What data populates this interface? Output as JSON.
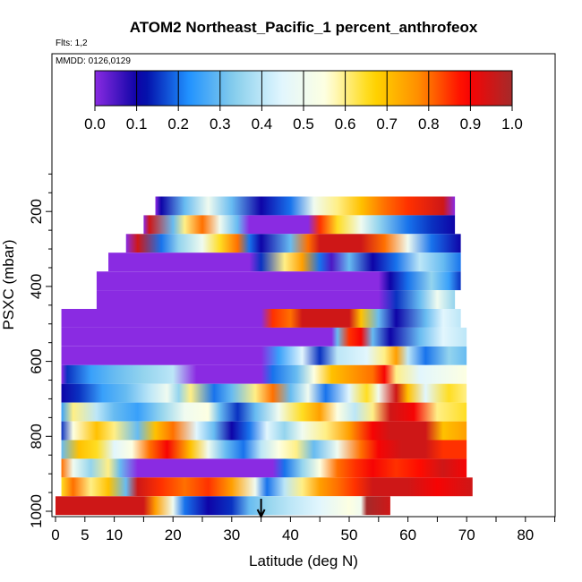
{
  "chart_data": {
    "type": "heatmap",
    "title": "ATOM2 Northeast_Pacific_1 percent_anthrofeox",
    "subtitle_flights": "Flts: 1,2",
    "subtitle_dates": "MMDD: 0126,0129",
    "xlabel": "Latitude (deg N)",
    "ylabel": "PSXC (mbar)",
    "xlim": [
      0,
      85
    ],
    "ylim": [
      1000,
      100
    ],
    "x_ticks": [
      0,
      5,
      10,
      20,
      30,
      40,
      50,
      60,
      70,
      80
    ],
    "y_ticks": [
      200,
      400,
      600,
      800,
      1000
    ],
    "colorbar": {
      "range": [
        0,
        1
      ],
      "ticks": [
        "0.0",
        "0.1",
        "0.2",
        "0.3",
        "0.4",
        "0.5",
        "0.6",
        "0.7",
        "0.8",
        "0.9",
        "1.0"
      ],
      "colors": [
        "#8a2be2",
        "#0000a0",
        "#1e90ff",
        "#87ceeb",
        "#e0f6ff",
        "#ffffe0",
        "#ffd700",
        "#ff8c00",
        "#ff0000",
        "#a52a2a"
      ]
    },
    "rows": [
      {
        "p": 185,
        "x0": 17,
        "x1": 68,
        "stops": [
          [
            17,
            0.0
          ],
          [
            18,
            0.1
          ],
          [
            22,
            0.3
          ],
          [
            26,
            0.5
          ],
          [
            30,
            0.3
          ],
          [
            35,
            0.1
          ],
          [
            40,
            0.2
          ],
          [
            44,
            0.5
          ],
          [
            48,
            0.6
          ],
          [
            52,
            0.7
          ],
          [
            56,
            0.8
          ],
          [
            60,
            0.85
          ],
          [
            66,
            0.95
          ],
          [
            68,
            0.0
          ]
        ]
      },
      {
        "p": 235,
        "x0": 15,
        "x1": 68,
        "stops": [
          [
            15,
            0.0
          ],
          [
            16,
            0.95
          ],
          [
            20,
            0.3
          ],
          [
            22,
            0.6
          ],
          [
            25,
            0.8
          ],
          [
            28,
            0.5
          ],
          [
            31,
            0.3
          ],
          [
            33,
            0.0
          ],
          [
            43,
            0.0
          ],
          [
            45,
            0.85
          ],
          [
            48,
            0.65
          ],
          [
            52,
            0.5
          ],
          [
            55,
            0.35
          ],
          [
            60,
            0.2
          ],
          [
            64,
            0.15
          ],
          [
            68,
            0.1
          ]
        ]
      },
      {
        "p": 285,
        "x0": 12,
        "x1": 69,
        "stops": [
          [
            12,
            0.0
          ],
          [
            14,
            0.95
          ],
          [
            18,
            0.2
          ],
          [
            21,
            0.35
          ],
          [
            25,
            0.5
          ],
          [
            28,
            0.65
          ],
          [
            31,
            0.8
          ],
          [
            33,
            0.2
          ],
          [
            35,
            0.1
          ],
          [
            40,
            0.3
          ],
          [
            43,
            0.8
          ],
          [
            45,
            0.95
          ],
          [
            48,
            0.95
          ],
          [
            52,
            0.95
          ],
          [
            56,
            0.8
          ],
          [
            60,
            0.5
          ],
          [
            64,
            0.2
          ],
          [
            69,
            0.1
          ]
        ]
      },
      {
        "p": 335,
        "x0": 9,
        "x1": 69,
        "stops": [
          [
            9,
            0.0
          ],
          [
            33,
            0.0
          ],
          [
            35,
            0.15
          ],
          [
            39,
            0.6
          ],
          [
            42,
            0.75
          ],
          [
            45,
            0.2
          ],
          [
            47,
            0.05
          ],
          [
            50,
            0.3
          ],
          [
            54,
            0.1
          ],
          [
            58,
            0.2
          ],
          [
            62,
            0.4
          ],
          [
            66,
            0.3
          ],
          [
            69,
            0.2
          ]
        ]
      },
      {
        "p": 385,
        "x0": 7,
        "x1": 69,
        "stops": [
          [
            7,
            0.0
          ],
          [
            55,
            0.0
          ],
          [
            57,
            0.1
          ],
          [
            60,
            0.2
          ],
          [
            64,
            0.35
          ],
          [
            67,
            0.25
          ],
          [
            69,
            0.15
          ]
        ]
      },
      {
        "p": 435,
        "x0": 7,
        "x1": 68,
        "stops": [
          [
            7,
            0.0
          ],
          [
            55,
            0.0
          ],
          [
            58,
            0.15
          ],
          [
            62,
            0.3
          ],
          [
            65,
            0.5
          ],
          [
            68,
            0.35
          ]
        ]
      },
      {
        "p": 485,
        "x0": 1,
        "x1": 69,
        "stops": [
          [
            1,
            0.0
          ],
          [
            35,
            0.0
          ],
          [
            37,
            0.85
          ],
          [
            40,
            0.8
          ],
          [
            42,
            0.95
          ],
          [
            50,
            0.95
          ],
          [
            52,
            0.7
          ],
          [
            55,
            0.3
          ],
          [
            58,
            0.1
          ],
          [
            63,
            0.3
          ],
          [
            66,
            0.45
          ],
          [
            69,
            0.4
          ]
        ]
      },
      {
        "p": 535,
        "x0": 1,
        "x1": 70,
        "stops": [
          [
            1,
            0.0
          ],
          [
            47,
            0.0
          ],
          [
            48,
            0.3
          ],
          [
            50,
            0.85
          ],
          [
            52,
            0.9
          ],
          [
            54,
            0.3
          ],
          [
            57,
            0.1
          ],
          [
            62,
            0.3
          ],
          [
            66,
            0.45
          ],
          [
            70,
            0.4
          ]
        ]
      },
      {
        "p": 585,
        "x0": 1,
        "x1": 70,
        "stops": [
          [
            1,
            0.0
          ],
          [
            35,
            0.0
          ],
          [
            38,
            0.25
          ],
          [
            42,
            0.45
          ],
          [
            45,
            0.15
          ],
          [
            48,
            0.4
          ],
          [
            53,
            0.45
          ],
          [
            56,
            0.6
          ],
          [
            58,
            0.75
          ],
          [
            60,
            0.4
          ],
          [
            63,
            0.2
          ],
          [
            67,
            0.35
          ],
          [
            70,
            0.3
          ]
        ]
      },
      {
        "p": 635,
        "x0": 1,
        "x1": 70,
        "stops": [
          [
            1,
            0.0
          ],
          [
            2,
            0.15
          ],
          [
            6,
            0.25
          ],
          [
            10,
            0.3
          ],
          [
            15,
            0.35
          ],
          [
            20,
            0.4
          ],
          [
            24,
            0.0
          ],
          [
            35,
            0.0
          ],
          [
            37,
            0.2
          ],
          [
            41,
            0.3
          ],
          [
            44,
            0.55
          ],
          [
            47,
            0.7
          ],
          [
            50,
            0.75
          ],
          [
            54,
            0.8
          ],
          [
            56,
            0.9
          ],
          [
            58,
            0.6
          ],
          [
            62,
            0.45
          ],
          [
            66,
            0.5
          ],
          [
            70,
            0.55
          ]
        ]
      },
      {
        "p": 685,
        "x0": 1,
        "x1": 70,
        "stops": [
          [
            1,
            0.1
          ],
          [
            4,
            0.15
          ],
          [
            8,
            0.25
          ],
          [
            12,
            0.3
          ],
          [
            16,
            0.4
          ],
          [
            19,
            0.5
          ],
          [
            21,
            0.35
          ],
          [
            23,
            0.6
          ],
          [
            27,
            0.2
          ],
          [
            30,
            0.3
          ],
          [
            34,
            0.6
          ],
          [
            37,
            0.8
          ],
          [
            40,
            0.3
          ],
          [
            43,
            0.5
          ],
          [
            46,
            0.2
          ],
          [
            50,
            0.45
          ],
          [
            53,
            0.65
          ],
          [
            55,
            0.5
          ],
          [
            58,
            0.95
          ],
          [
            60,
            0.7
          ],
          [
            63,
            0.45
          ],
          [
            67,
            0.65
          ],
          [
            70,
            0.6
          ]
        ]
      },
      {
        "p": 735,
        "x0": 1,
        "x1": 70,
        "stops": [
          [
            1,
            0.25
          ],
          [
            3,
            0.6
          ],
          [
            7,
            0.4
          ],
          [
            10,
            0.3
          ],
          [
            14,
            0.25
          ],
          [
            18,
            0.35
          ],
          [
            22,
            0.5
          ],
          [
            26,
            0.55
          ],
          [
            28,
            0.3
          ],
          [
            31,
            0.15
          ],
          [
            34,
            0.3
          ],
          [
            38,
            0.5
          ],
          [
            42,
            0.65
          ],
          [
            45,
            0.75
          ],
          [
            48,
            0.55
          ],
          [
            51,
            0.4
          ],
          [
            54,
            0.6
          ],
          [
            57,
            0.95
          ],
          [
            61,
            0.9
          ],
          [
            65,
            0.6
          ],
          [
            70,
            0.65
          ]
        ]
      },
      {
        "p": 785,
        "x0": 1,
        "x1": 70,
        "stops": [
          [
            1,
            0.15
          ],
          [
            3,
            0.55
          ],
          [
            7,
            0.7
          ],
          [
            10,
            0.6
          ],
          [
            14,
            0.3
          ],
          [
            17,
            0.7
          ],
          [
            20,
            0.8
          ],
          [
            24,
            0.45
          ],
          [
            27,
            0.3
          ],
          [
            30,
            0.1
          ],
          [
            33,
            0.2
          ],
          [
            36,
            0.45
          ],
          [
            39,
            0.35
          ],
          [
            42,
            0.5
          ],
          [
            46,
            0.6
          ],
          [
            50,
            0.75
          ],
          [
            54,
            0.9
          ],
          [
            57,
            0.95
          ],
          [
            63,
            0.95
          ],
          [
            66,
            0.7
          ],
          [
            70,
            0.75
          ]
        ]
      },
      {
        "p": 835,
        "x0": 1,
        "x1": 70,
        "stops": [
          [
            1,
            0.3
          ],
          [
            4,
            0.7
          ],
          [
            7,
            0.65
          ],
          [
            10,
            0.45
          ],
          [
            13,
            0.55
          ],
          [
            16,
            0.8
          ],
          [
            19,
            0.9
          ],
          [
            23,
            0.7
          ],
          [
            26,
            0.5
          ],
          [
            29,
            0.3
          ],
          [
            32,
            0.2
          ],
          [
            35,
            0.4
          ],
          [
            38,
            0.55
          ],
          [
            41,
            0.6
          ],
          [
            44,
            0.3
          ],
          [
            48,
            0.5
          ],
          [
            52,
            0.8
          ],
          [
            55,
            0.9
          ],
          [
            59,
            0.95
          ],
          [
            63,
            0.95
          ],
          [
            66,
            0.85
          ],
          [
            70,
            0.85
          ]
        ]
      },
      {
        "p": 885,
        "x0": 1,
        "x1": 70,
        "stops": [
          [
            1,
            0.8
          ],
          [
            3,
            0.5
          ],
          [
            6,
            0.35
          ],
          [
            9,
            0.6
          ],
          [
            11,
            0.3
          ],
          [
            14,
            0.0
          ],
          [
            37,
            0.0
          ],
          [
            39,
            0.2
          ],
          [
            42,
            0.35
          ],
          [
            45,
            0.55
          ],
          [
            48,
            0.8
          ],
          [
            51,
            0.85
          ],
          [
            54,
            0.9
          ],
          [
            58,
            0.85
          ],
          [
            62,
            0.88
          ],
          [
            66,
            0.95
          ],
          [
            70,
            0.9
          ]
        ]
      },
      {
        "p": 935,
        "x0": 1,
        "x1": 71,
        "stops": [
          [
            1,
            0.65
          ],
          [
            3,
            0.8
          ],
          [
            6,
            0.6
          ],
          [
            9,
            0.7
          ],
          [
            12,
            0.3
          ],
          [
            14,
            0.95
          ],
          [
            18,
            0.85
          ],
          [
            22,
            0.8
          ],
          [
            26,
            0.85
          ],
          [
            30,
            0.75
          ],
          [
            34,
            0.5
          ],
          [
            36,
            0.2
          ],
          [
            39,
            0.4
          ],
          [
            42,
            0.6
          ],
          [
            45,
            0.75
          ],
          [
            48,
            0.8
          ],
          [
            51,
            0.85
          ],
          [
            54,
            0.95
          ],
          [
            60,
            0.95
          ],
          [
            65,
            0.9
          ],
          [
            71,
            0.95
          ]
        ]
      },
      {
        "p": 985,
        "x0": 0,
        "x1": 57,
        "stops": [
          [
            0,
            0.95
          ],
          [
            15,
            0.95
          ],
          [
            17,
            0.75
          ],
          [
            20,
            0.5
          ],
          [
            22,
            0.2
          ],
          [
            26,
            0.1
          ],
          [
            30,
            0.15
          ],
          [
            33,
            0.3
          ],
          [
            36,
            0.35
          ],
          [
            40,
            0.4
          ],
          [
            45,
            0.45
          ],
          [
            50,
            0.55
          ],
          [
            52,
            0.5
          ],
          [
            53,
            1.0
          ],
          [
            57,
            0.95
          ]
        ]
      }
    ],
    "annotation_arrow": {
      "x": 35,
      "p": 985
    }
  }
}
